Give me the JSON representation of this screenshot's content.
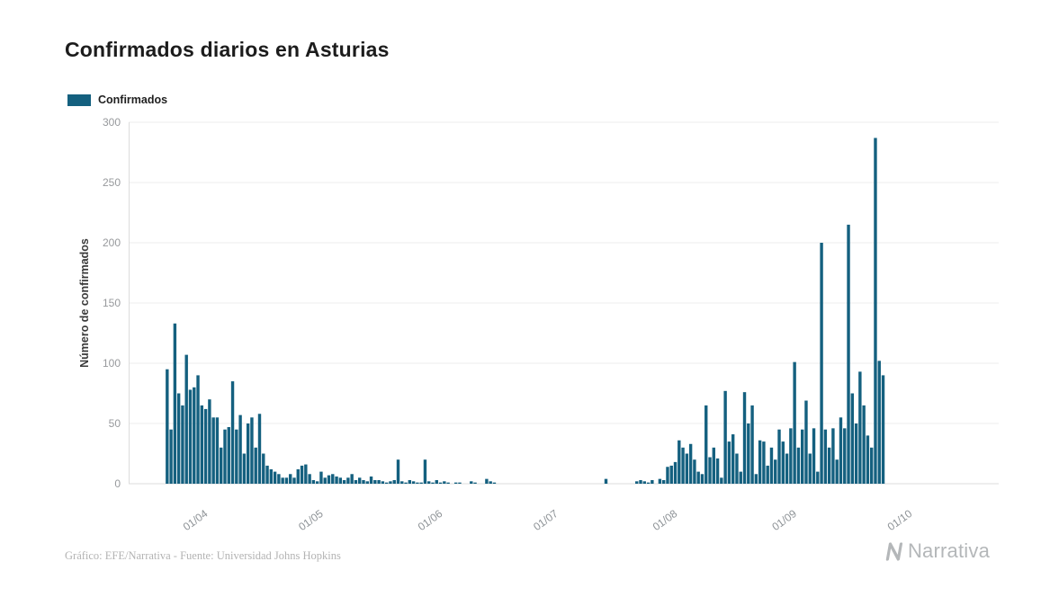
{
  "header": {
    "title": "Confirmados diarios en Asturias"
  },
  "legend": {
    "label": "Confirmados"
  },
  "footer": {
    "credit": "Gráfico: EFE/Narrativa - Fuente: Universidad Johns Hopkins",
    "brand": "Narrativa"
  },
  "chart_data": {
    "type": "bar",
    "title": "Confirmados diarios en Asturias",
    "ylabel": "Número de confirmados",
    "xlabel": "",
    "ylim": [
      0,
      300
    ],
    "y_ticks": [
      0,
      50,
      100,
      150,
      200,
      250,
      300
    ],
    "x_ticks": [
      {
        "label": "01/04",
        "day_index": 10
      },
      {
        "label": "01/05",
        "day_index": 40
      },
      {
        "label": "01/06",
        "day_index": 71
      },
      {
        "label": "01/07",
        "day_index": 101
      },
      {
        "label": "01/08",
        "day_index": 132
      },
      {
        "label": "01/09",
        "day_index": 163
      },
      {
        "label": "01/10",
        "day_index": 193
      }
    ],
    "date_format": "dd/mm",
    "grid": true,
    "legend_position": "top-left",
    "colors": {
      "bar": "#14607f",
      "grid": "#ececec",
      "axis": "#dcdcdc",
      "tick_label": "#97999c",
      "axis_title": "#3a3a3a"
    },
    "series": [
      {
        "name": "Confirmados",
        "start_date": "2020-03-22",
        "values": [
          95,
          45,
          133,
          75,
          65,
          107,
          78,
          80,
          90,
          65,
          62,
          70,
          55,
          55,
          30,
          45,
          47,
          85,
          45,
          57,
          25,
          50,
          55,
          30,
          58,
          25,
          15,
          12,
          10,
          8,
          5,
          5,
          8,
          5,
          12,
          15,
          16,
          8,
          3,
          2,
          10,
          5,
          7,
          8,
          6,
          5,
          3,
          5,
          8,
          3,
          5,
          3,
          2,
          6,
          3,
          3,
          2,
          1,
          2,
          3,
          20,
          2,
          1,
          3,
          2,
          1,
          1,
          20,
          2,
          1,
          3,
          1,
          2,
          1,
          0,
          1,
          1,
          0,
          0,
          2,
          1,
          0,
          0,
          4,
          2,
          1,
          0,
          0,
          0,
          0,
          0,
          0,
          0,
          0,
          0,
          0,
          0,
          0,
          0,
          0,
          0,
          0,
          0,
          0,
          0,
          0,
          0,
          0,
          0,
          0,
          0,
          0,
          0,
          0,
          4,
          0,
          0,
          0,
          0,
          0,
          0,
          0,
          2,
          3,
          2,
          1,
          3,
          0,
          4,
          3,
          14,
          15,
          18,
          36,
          30,
          25,
          33,
          20,
          10,
          8,
          65,
          22,
          30,
          21,
          5,
          77,
          35,
          41,
          25,
          10,
          76,
          50,
          65,
          8,
          36,
          35,
          15,
          30,
          20,
          45,
          35,
          25,
          46,
          101,
          30,
          45,
          69,
          25,
          46,
          10,
          200,
          45,
          30,
          46,
          20,
          55,
          46,
          215,
          75,
          50,
          93,
          65,
          40,
          30,
          287,
          102,
          90,
          0,
          0,
          0,
          0,
          0,
          0,
          0
        ]
      }
    ]
  }
}
